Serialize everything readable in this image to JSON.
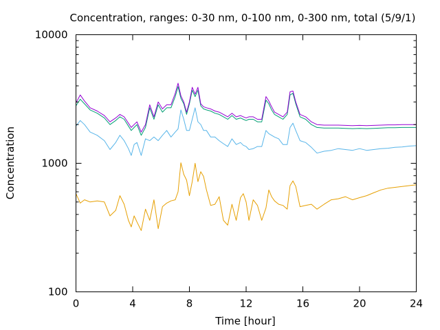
{
  "chart_data": {
    "type": "line",
    "title": "Concentration, ranges: 0-30 nm, 0-100 nm, 0-300 nm, total (5/9/1)",
    "xlabel": "Time [hour]",
    "ylabel": "Concentration",
    "xlim": [
      0,
      24
    ],
    "ylim": [
      100,
      10000
    ],
    "yscale": "log",
    "grid": false,
    "legend": "none",
    "x_ticks": [
      0,
      4,
      8,
      12,
      16,
      20,
      24
    ],
    "y_ticks": [
      100,
      1000,
      10000
    ],
    "x_tick_labels": [
      "0",
      "4",
      "8",
      "12",
      "16",
      "20",
      "24"
    ],
    "y_tick_labels": [
      "100",
      "1000",
      "10000"
    ],
    "series": [
      {
        "color": "#E69F00",
        "x": [
          0,
          0.3,
          0.6,
          1,
          1.5,
          2,
          2.4,
          2.8,
          3.1,
          3.4,
          3.7,
          3.9,
          4.1,
          4.3,
          4.6,
          4.9,
          5.2,
          5.5,
          5.8,
          6.1,
          6.4,
          6.7,
          7,
          7.2,
          7.4,
          7.6,
          7.8,
          8,
          8.2,
          8.4,
          8.6,
          8.8,
          9,
          9.2,
          9.5,
          9.8,
          10.1,
          10.4,
          10.7,
          11,
          11.3,
          11.6,
          11.8,
          12,
          12.2,
          12.5,
          12.8,
          13.1,
          13.4,
          13.6,
          13.8,
          14,
          14.3,
          14.6,
          14.9,
          15.1,
          15.3,
          15.5,
          15.8,
          16.2,
          16.6,
          17,
          17.5,
          18,
          18.5,
          19,
          19.5,
          20,
          20.5,
          21,
          21.5,
          22,
          22.5,
          23,
          23.5,
          24
        ],
        "y": [
          580,
          490,
          520,
          500,
          510,
          500,
          390,
          430,
          560,
          480,
          360,
          320,
          390,
          350,
          300,
          440,
          360,
          520,
          310,
          460,
          490,
          510,
          520,
          600,
          1010,
          820,
          740,
          560,
          720,
          1000,
          720,
          860,
          790,
          620,
          470,
          480,
          550,
          360,
          330,
          480,
          360,
          540,
          580,
          500,
          360,
          520,
          470,
          360,
          450,
          620,
          550,
          510,
          480,
          470,
          440,
          670,
          730,
          660,
          460,
          470,
          480,
          440,
          480,
          520,
          530,
          550,
          520,
          540,
          560,
          590,
          620,
          640,
          650,
          660,
          670,
          680
        ]
      },
      {
        "color": "#56B4E9",
        "x": [
          0,
          0.3,
          0.6,
          1,
          1.5,
          2,
          2.4,
          2.8,
          3.1,
          3.4,
          3.7,
          3.9,
          4.1,
          4.3,
          4.6,
          4.9,
          5.2,
          5.5,
          5.8,
          6.1,
          6.4,
          6.7,
          7,
          7.2,
          7.4,
          7.6,
          7.8,
          8,
          8.2,
          8.4,
          8.6,
          8.8,
          9,
          9.2,
          9.5,
          9.8,
          10.1,
          10.4,
          10.7,
          11,
          11.3,
          11.6,
          11.8,
          12,
          12.2,
          12.5,
          12.8,
          13.1,
          13.4,
          13.6,
          13.8,
          14,
          14.3,
          14.6,
          14.9,
          15.1,
          15.3,
          15.5,
          15.8,
          16.2,
          16.6,
          17,
          17.5,
          18,
          18.5,
          19,
          19.5,
          20,
          20.5,
          21,
          21.5,
          22,
          22.5,
          23,
          23.5,
          24
        ],
        "y": [
          1950,
          2150,
          2000,
          1750,
          1650,
          1500,
          1280,
          1450,
          1650,
          1500,
          1300,
          1150,
          1400,
          1450,
          1150,
          1550,
          1500,
          1600,
          1500,
          1650,
          1800,
          1600,
          1750,
          1850,
          2600,
          2200,
          1800,
          1800,
          2200,
          2700,
          2100,
          2000,
          1800,
          1800,
          1600,
          1600,
          1500,
          1420,
          1350,
          1550,
          1400,
          1450,
          1380,
          1350,
          1280,
          1300,
          1350,
          1350,
          1800,
          1700,
          1650,
          1600,
          1550,
          1400,
          1400,
          1900,
          2050,
          1800,
          1500,
          1450,
          1330,
          1200,
          1240,
          1260,
          1300,
          1280,
          1260,
          1300,
          1260,
          1280,
          1300,
          1310,
          1330,
          1340,
          1360,
          1370
        ]
      },
      {
        "color": "#009E73",
        "x": [
          0,
          0.3,
          0.6,
          1,
          1.5,
          2,
          2.4,
          2.8,
          3.1,
          3.4,
          3.7,
          3.9,
          4.1,
          4.3,
          4.6,
          4.9,
          5.2,
          5.5,
          5.8,
          6.1,
          6.4,
          6.7,
          7,
          7.2,
          7.4,
          7.6,
          7.8,
          8,
          8.2,
          8.4,
          8.6,
          8.8,
          9,
          9.2,
          9.5,
          9.8,
          10.1,
          10.4,
          10.7,
          11,
          11.3,
          11.6,
          11.8,
          12,
          12.2,
          12.5,
          12.8,
          13.1,
          13.4,
          13.6,
          13.8,
          14,
          14.3,
          14.6,
          14.9,
          15.1,
          15.3,
          15.5,
          15.8,
          16.2,
          16.6,
          17,
          17.5,
          18,
          18.5,
          19,
          19.5,
          20,
          20.5,
          21,
          21.5,
          22,
          22.5,
          23,
          23.5,
          24
        ],
        "y": [
          2800,
          3150,
          2900,
          2600,
          2450,
          2250,
          2000,
          2150,
          2300,
          2200,
          1950,
          1800,
          1900,
          2000,
          1650,
          1900,
          2700,
          2200,
          2850,
          2500,
          2700,
          2700,
          3300,
          3950,
          3200,
          2900,
          2400,
          2900,
          3700,
          3300,
          3700,
          2800,
          2650,
          2600,
          2550,
          2450,
          2400,
          2300,
          2200,
          2350,
          2200,
          2250,
          2200,
          2150,
          2200,
          2200,
          2100,
          2100,
          3100,
          2900,
          2600,
          2400,
          2300,
          2200,
          2400,
          3400,
          3500,
          2900,
          2300,
          2200,
          2000,
          1900,
          1880,
          1880,
          1880,
          1870,
          1860,
          1870,
          1860,
          1870,
          1880,
          1890,
          1890,
          1900,
          1900,
          1900
        ]
      },
      {
        "color": "#9400D3",
        "x": [
          0,
          0.3,
          0.6,
          1,
          1.5,
          2,
          2.4,
          2.8,
          3.1,
          3.4,
          3.7,
          3.9,
          4.1,
          4.3,
          4.6,
          4.9,
          5.2,
          5.5,
          5.8,
          6.1,
          6.4,
          6.7,
          7,
          7.2,
          7.4,
          7.6,
          7.8,
          8,
          8.2,
          8.4,
          8.6,
          8.8,
          9,
          9.2,
          9.5,
          9.8,
          10.1,
          10.4,
          10.7,
          11,
          11.3,
          11.6,
          11.8,
          12,
          12.2,
          12.5,
          12.8,
          13.1,
          13.4,
          13.6,
          13.8,
          14,
          14.3,
          14.6,
          14.9,
          15.1,
          15.3,
          15.5,
          15.8,
          16.2,
          16.6,
          17,
          17.5,
          18,
          18.5,
          19,
          19.5,
          20,
          20.5,
          21,
          21.5,
          22,
          22.5,
          23,
          23.5,
          24
        ],
        "y": [
          2950,
          3400,
          3050,
          2700,
          2550,
          2350,
          2100,
          2250,
          2400,
          2300,
          2050,
          1900,
          2000,
          2100,
          1750,
          2000,
          2850,
          2300,
          3000,
          2650,
          2850,
          2850,
          3500,
          4200,
          3350,
          3000,
          2500,
          3000,
          3900,
          3450,
          3900,
          2900,
          2750,
          2700,
          2650,
          2550,
          2500,
          2400,
          2300,
          2450,
          2300,
          2350,
          2300,
          2250,
          2300,
          2300,
          2200,
          2200,
          3300,
          3050,
          2750,
          2500,
          2400,
          2300,
          2500,
          3600,
          3650,
          3000,
          2400,
          2300,
          2100,
          2000,
          1980,
          1980,
          1980,
          1970,
          1960,
          1970,
          1960,
          1970,
          1980,
          1990,
          1990,
          2000,
          2000,
          2000
        ]
      }
    ]
  }
}
